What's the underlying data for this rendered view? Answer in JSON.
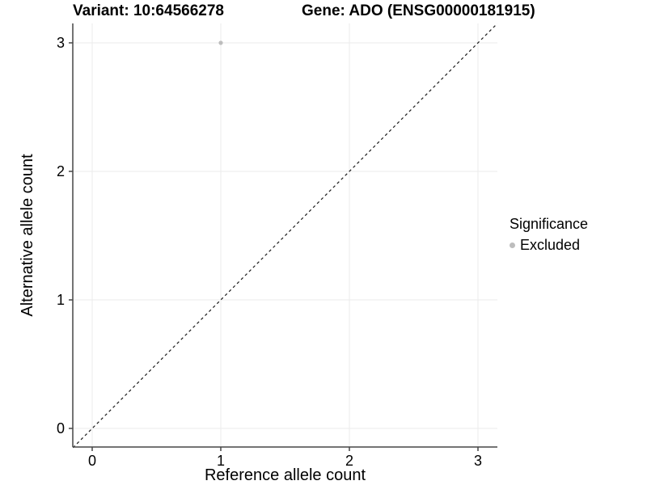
{
  "chart_data": {
    "type": "scatter",
    "title_left": "Variant: 10:64566278",
    "title_right": "Gene: ADO (ENSG00000181915)",
    "xlabel": "Reference allele count",
    "ylabel": "Alternative allele count",
    "xticks": [
      0,
      1,
      2,
      3
    ],
    "yticks": [
      0,
      1,
      2,
      3
    ],
    "xlim": [
      -0.15,
      3.15
    ],
    "ylim": [
      -0.15,
      3.15
    ],
    "grid": true,
    "points": [
      {
        "x": 1,
        "y": 3,
        "series": "Excluded"
      }
    ],
    "reference_line": {
      "type": "identity",
      "style": "dashed",
      "from": [
        -0.15,
        -0.15
      ],
      "to": [
        3.15,
        3.15
      ]
    },
    "legend": {
      "title": "Significance",
      "position": "right",
      "entries": [
        {
          "label": "Excluded",
          "color": "#bdbdbd"
        }
      ]
    },
    "colors": {
      "background": "#ffffff",
      "grid": "#ebebeb",
      "axis": "#464646",
      "text": "#000000",
      "dashed_line": "#1a1a1a",
      "point": "#bdbdbd"
    }
  }
}
